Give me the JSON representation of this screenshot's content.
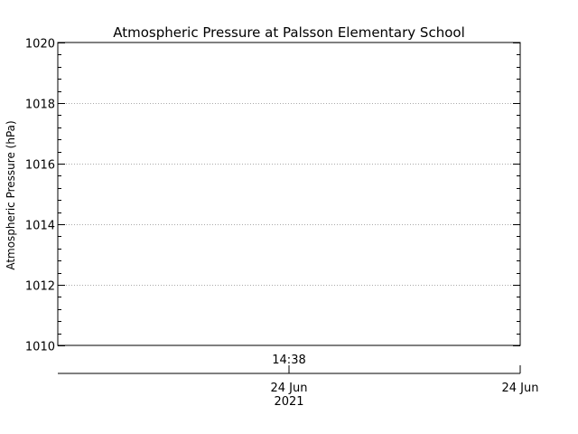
{
  "chart_data": {
    "type": "line",
    "title": "Atmospheric Pressure at Palsson Elementary School",
    "xlabel": "",
    "ylabel": "Atmospheric Pressure (hPa)",
    "ylim": [
      1010,
      1020
    ],
    "yticks": [
      "1010",
      "1012",
      "1014",
      "1016",
      "1018",
      "1020"
    ],
    "grid": true,
    "series": [],
    "x_marker": {
      "label": "14:38"
    },
    "x_axis_labels": [
      {
        "date": "24 Jun",
        "year": "2021"
      },
      {
        "date": "24 Jun",
        "year": ""
      }
    ]
  }
}
